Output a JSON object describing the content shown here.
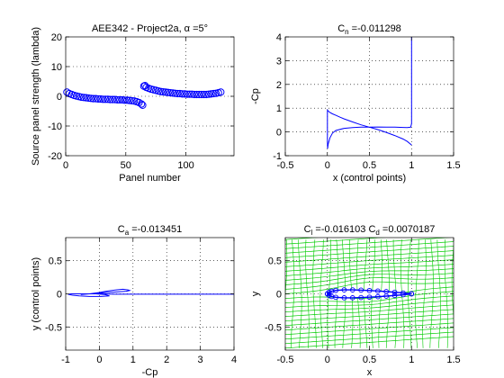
{
  "figure": {
    "background": "#ffffff",
    "axes_color": "#000000",
    "grid_color": "#000000",
    "series_color": "#0000ff",
    "stream_color": "#00cc00"
  },
  "chart_data": [
    {
      "id": "ax1",
      "type": "scatter",
      "title": "AEE342 - Project2a, α =5°",
      "xlabel": "Panel number",
      "ylabel": "Source panel strength (lambda)",
      "xlim": [
        0,
        140
      ],
      "ylim": [
        -20,
        20
      ],
      "xticks": [
        0,
        50,
        100
      ],
      "yticks": [
        -20,
        -10,
        0,
        10,
        20
      ],
      "grid": true,
      "marker": "circle",
      "series": [
        {
          "x": [
            1,
            3,
            5,
            7,
            9,
            11,
            13,
            15,
            17,
            19,
            21,
            23,
            25,
            27,
            29,
            31,
            33,
            35,
            37,
            39,
            41,
            43,
            45,
            47,
            49,
            51,
            53,
            55,
            57,
            59,
            61,
            63,
            64,
            65,
            66,
            67,
            69,
            71,
            73,
            75,
            77,
            79,
            81,
            83,
            85,
            87,
            89,
            91,
            93,
            95,
            97,
            99,
            101,
            103,
            105,
            107,
            109,
            111,
            113,
            115,
            117,
            119,
            121,
            123,
            125,
            127,
            129
          ],
          "y": [
            1.4,
            0.9,
            0.6,
            0.3,
            0.1,
            -0.1,
            -0.3,
            -0.4,
            -0.5,
            -0.6,
            -0.7,
            -0.8,
            -0.8,
            -0.9,
            -0.9,
            -1.0,
            -1.0,
            -1.0,
            -1.1,
            -1.1,
            -1.1,
            -1.2,
            -1.2,
            -1.2,
            -1.3,
            -1.3,
            -1.4,
            -1.5,
            -1.6,
            -1.8,
            -2.1,
            -2.6,
            -3.0,
            3.4,
            3.6,
            3.0,
            2.7,
            2.4,
            2.2,
            2.0,
            1.8,
            1.6,
            1.5,
            1.4,
            1.3,
            1.2,
            1.1,
            1.0,
            0.9,
            0.9,
            0.8,
            0.8,
            0.7,
            0.7,
            0.7,
            0.6,
            0.6,
            0.6,
            0.6,
            0.6,
            0.6,
            0.7,
            0.8,
            0.9,
            1.0,
            1.2,
            1.4
          ]
        }
      ]
    },
    {
      "id": "ax2",
      "type": "line",
      "title_main": "C",
      "title_sub": "n",
      "title_rest": " =-0.011298",
      "xlabel": "x (control points)",
      "ylabel": "-Cp",
      "xlim": [
        -0.5,
        1.5
      ],
      "ylim": [
        -1,
        4
      ],
      "xticks": [
        -0.5,
        0,
        0.5,
        1,
        1.5
      ],
      "xtick_labels": [
        "-0.5",
        "0",
        "0.5",
        "1",
        "1.5"
      ],
      "yticks": [
        -1,
        0,
        1,
        2,
        3,
        4
      ],
      "grid": true,
      "series": [
        {
          "x": [
            1.0,
            0.95,
            0.9,
            0.8,
            0.7,
            0.6,
            0.5,
            0.4,
            0.3,
            0.2,
            0.15,
            0.1,
            0.06,
            0.03,
            0.01,
            0.002,
            0.0,
            0.0,
            0.003,
            0.01,
            0.03,
            0.06,
            0.1,
            0.2,
            0.3,
            0.4,
            0.5,
            0.6,
            0.7,
            0.8,
            0.9,
            0.95,
            0.99,
            1.0,
            1.0
          ],
          "y": [
            -0.55,
            -0.4,
            -0.3,
            -0.15,
            -0.02,
            0.1,
            0.2,
            0.3,
            0.42,
            0.55,
            0.62,
            0.7,
            0.76,
            0.82,
            0.88,
            0.92,
            0.9,
            -0.4,
            -0.7,
            -0.5,
            -0.25,
            -0.05,
            0.06,
            0.15,
            0.18,
            0.2,
            0.2,
            0.21,
            0.2,
            0.2,
            0.19,
            0.18,
            0.2,
            0.35,
            4.0
          ]
        }
      ]
    },
    {
      "id": "ax3",
      "type": "line",
      "title_main": "C",
      "title_sub": "a",
      "title_rest": " =-0.013451",
      "xlabel": "-Cp",
      "ylabel": "y (control points)",
      "xlim": [
        -1,
        4
      ],
      "ylim": [
        -0.85,
        0.85
      ],
      "xticks": [
        -1,
        0,
        1,
        2,
        3,
        4
      ],
      "yticks": [
        -0.5,
        0,
        0.5
      ],
      "grid": true,
      "series": [
        {
          "x": [
            -0.55,
            -0.3,
            0.0,
            0.2,
            0.5,
            0.7,
            0.85,
            0.9,
            0.8,
            0.55,
            0.2,
            0.0,
            -0.1,
            0.15,
            0.3,
            0.05,
            -0.3,
            -0.6,
            -0.8,
            -0.9,
            -0.85,
            -0.5,
            0.0,
            0.5,
            1.0,
            2.0,
            3.0,
            4.0
          ],
          "y": [
            -0.01,
            0.0,
            0.02,
            0.04,
            0.06,
            0.07,
            0.06,
            0.05,
            0.04,
            0.03,
            0.02,
            0.01,
            0.0,
            -0.01,
            -0.03,
            -0.04,
            -0.04,
            -0.03,
            -0.02,
            -0.01,
            0.0,
            0.0,
            0.0,
            -0.005,
            -0.005,
            -0.005,
            -0.005,
            -0.005
          ]
        }
      ]
    },
    {
      "id": "ax4",
      "type": "line",
      "title_main": "C",
      "title_sub": "l",
      "title_mid": " =-0.016103 C",
      "title_sub2": "d",
      "title_rest": " =0.0070187",
      "xlabel": "x",
      "ylabel": "y",
      "xlim": [
        -0.5,
        1.5
      ],
      "ylim": [
        -0.85,
        0.85
      ],
      "xticks": [
        -0.5,
        0,
        0.5,
        1,
        1.5
      ],
      "xtick_labels": [
        "-0.5",
        "0",
        "0.5",
        "1",
        "1.5"
      ],
      "yticks": [
        -0.5,
        0,
        0.5
      ],
      "grid": true,
      "streamlines": {
        "color": "#00cc00",
        "x_start": -0.5,
        "x_end": 1.5,
        "y_start": -0.82,
        "y_end": 0.82,
        "slope": 0.087,
        "count_horizontal": 25,
        "count_vertical": 24
      },
      "series": [
        {
          "name": "airfoil",
          "upper_x": [
            0.0,
            0.02,
            0.05,
            0.1,
            0.2,
            0.3,
            0.4,
            0.5,
            0.6,
            0.7,
            0.8,
            0.9,
            1.0
          ],
          "upper_y": [
            0.0,
            0.026,
            0.04,
            0.052,
            0.06,
            0.06,
            0.056,
            0.05,
            0.043,
            0.034,
            0.024,
            0.013,
            0.0
          ],
          "lower_x": [
            0.0,
            0.02,
            0.05,
            0.1,
            0.2,
            0.3,
            0.4,
            0.5,
            0.6,
            0.7,
            0.8,
            0.9,
            1.0
          ],
          "lower_y": [
            0.0,
            -0.026,
            -0.04,
            -0.052,
            -0.06,
            -0.06,
            -0.056,
            -0.05,
            -0.043,
            -0.034,
            -0.024,
            -0.013,
            0.0
          ]
        }
      ]
    }
  ]
}
